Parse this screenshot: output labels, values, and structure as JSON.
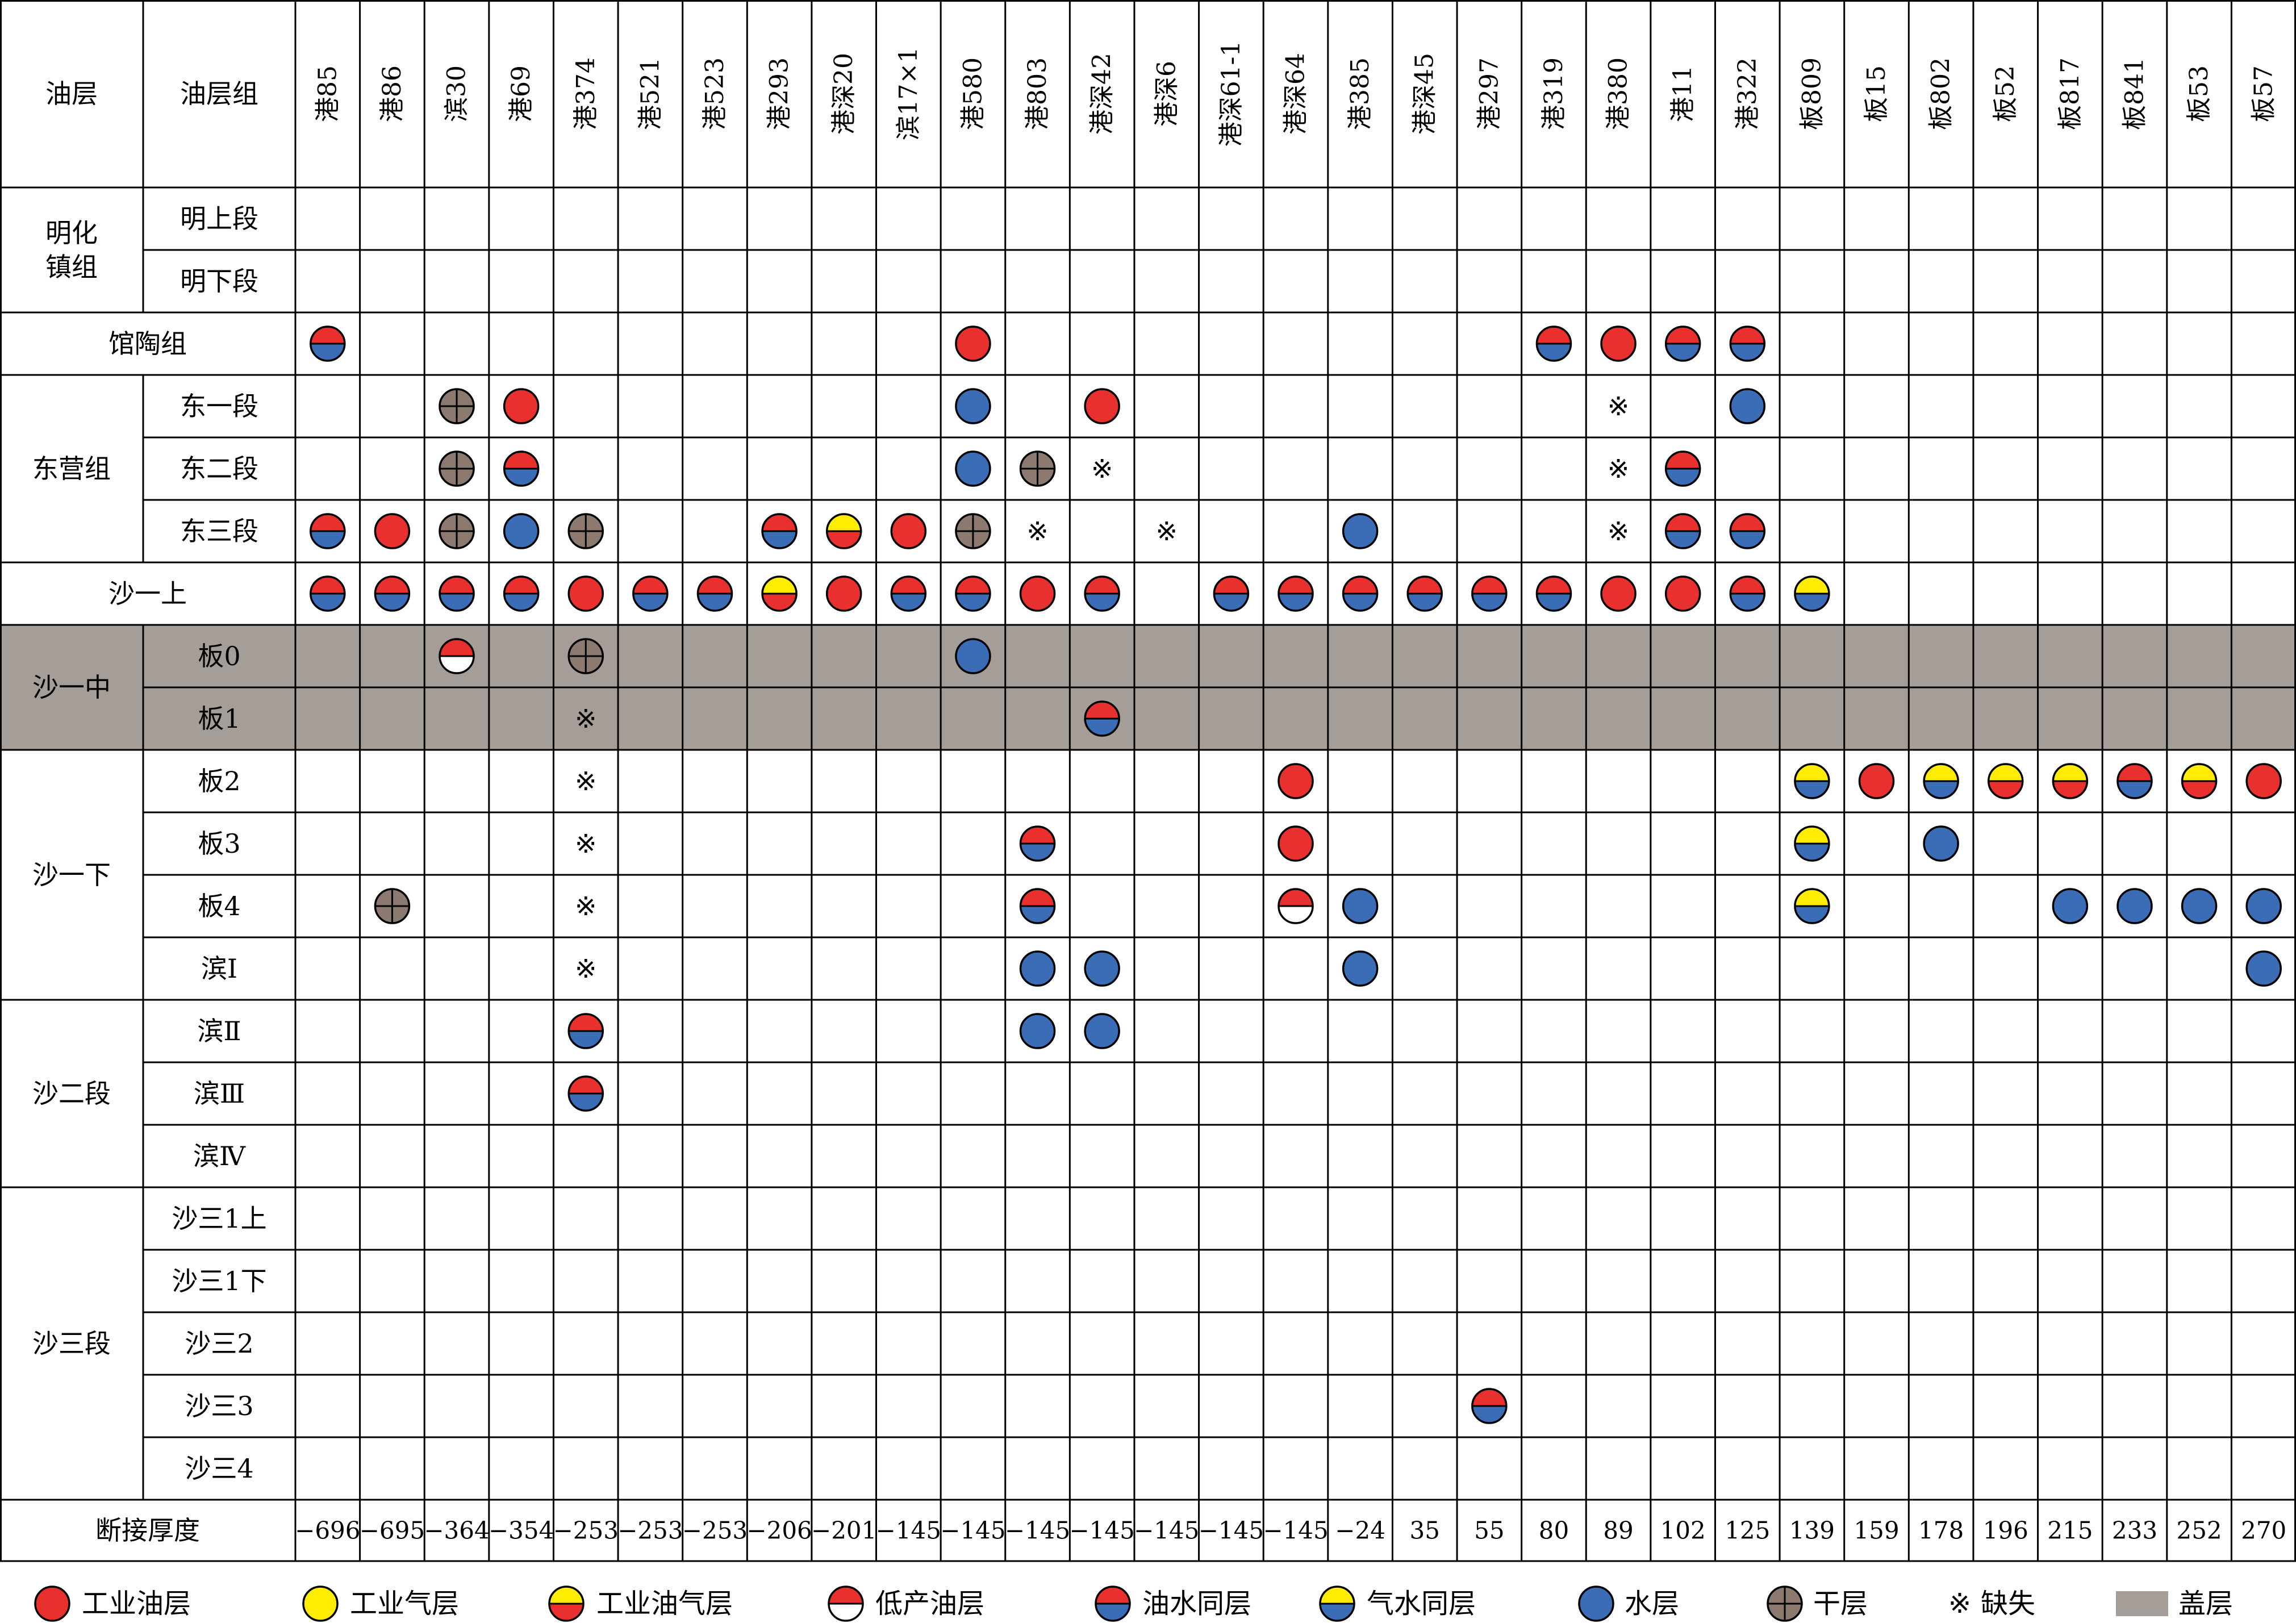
{
  "chart_data": {
    "type": "table",
    "header": {
      "layer": "油层",
      "group": "油层组"
    },
    "wells": [
      "港85",
      "港86",
      "滨30",
      "港69",
      "港374",
      "港521",
      "港523",
      "港293",
      "港深20",
      "滨17×1",
      "港580",
      "港803",
      "港深42",
      "港深6",
      "港深61-1",
      "港深64",
      "港385",
      "港深45",
      "港297",
      "港319",
      "港380",
      "港11",
      "港322",
      "板809",
      "板15",
      "板802",
      "板52",
      "板817",
      "板841",
      "板53",
      "板57"
    ],
    "groups": [
      {
        "name": "明化镇组",
        "lines": [
          "明化",
          "镇组"
        ],
        "subs": [
          "明上段",
          "明下段"
        ]
      },
      {
        "name": "馆陶组",
        "subs": [
          null
        ]
      },
      {
        "name": "东营组",
        "subs": [
          "东一段",
          "东二段",
          "东三段"
        ]
      },
      {
        "name": "沙一上",
        "subs": [
          null
        ]
      },
      {
        "name": "沙一中",
        "subs": [
          "板0",
          "板1"
        ],
        "shaded": true
      },
      {
        "name": "沙一下",
        "subs": [
          "板2",
          "板3",
          "板4",
          "滨Ⅰ"
        ]
      },
      {
        "name": "沙二段",
        "subs": [
          "滨Ⅱ",
          "滨Ⅲ",
          "滨Ⅳ"
        ]
      },
      {
        "name": "沙三段",
        "subs": [
          "沙三1上",
          "沙三1下",
          "沙三2",
          "沙三3",
          "沙三4"
        ]
      }
    ],
    "rows": [
      "...............................",
      "...............................",
      "W.........R........WRWW........",
      "..DR......B.R.......x.B........",
      "..DW......BDx.......xW.........",
      "WRDBD..WYRDx.x..B...xWW........",
      "WWWWRWWYRWWRW.WWWWWWRRWG.......",
      "..L.D.....B....................",
      "....x.......W..................",
      "....x..........R.......GRGYYWYR",
      "....x......W...R.......G.B.....",
      ".D..x......W...LB......G...BBBB",
      "....x......BB...B.............B",
      "....W......BB..................",
      "....W..........................",
      "...............................",
      "...............................",
      "...............................",
      "...............................",
      "..................W............",
      "..............................."
    ],
    "thickness_label": "断接厚度",
    "thickness": [
      "−696",
      "−695",
      "−364",
      "−354",
      "−253",
      "−253",
      "−253",
      "−206",
      "−201",
      "−145",
      "−145",
      "−145",
      "−145",
      "−145",
      "−145",
      "−145",
      "−24",
      "35",
      "55",
      "80",
      "89",
      "102",
      "125",
      "139",
      "159",
      "178",
      "196",
      "215",
      "233",
      "252",
      "270"
    ],
    "legend": [
      {
        "code": "R",
        "label": "工业油层"
      },
      {
        "code": "O",
        "label": "工业气层"
      },
      {
        "code": "Y",
        "label": "工业油气层"
      },
      {
        "code": "L",
        "label": "低产油层"
      },
      {
        "code": "W",
        "label": "油水同层"
      },
      {
        "code": "G",
        "label": "气水同层"
      },
      {
        "code": "B",
        "label": "水层"
      },
      {
        "code": "D",
        "label": "干层"
      },
      {
        "code": "x",
        "label": "缺失",
        "symbol": "※"
      },
      {
        "code": "C",
        "label": "盖层"
      }
    ],
    "colors": {
      "red": "#e8302e",
      "yellow": "#ffec00",
      "blue": "#3a6db5",
      "white": "#ffffff",
      "dry": "#8c7a70",
      "shade": "#a59d98",
      "grid": "#000000"
    }
  }
}
